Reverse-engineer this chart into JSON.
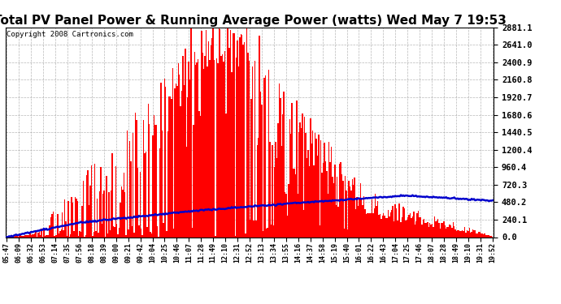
{
  "title": "Total PV Panel Power & Running Average Power (watts) Wed May 7 19:53",
  "copyright": "Copyright 2008 Cartronics.com",
  "ymax": 2881.1,
  "ymin": 0.0,
  "ytick_labels": [
    "0.0",
    "240.1",
    "480.2",
    "720.3",
    "960.4",
    "1200.4",
    "1440.5",
    "1680.6",
    "1920.7",
    "2160.8",
    "2400.9",
    "2641.0",
    "2881.1"
  ],
  "background_color": "#ffffff",
  "bar_color": "#ff0000",
  "avg_line_color": "#0000cc",
  "grid_color": "#999999",
  "title_fontsize": 11,
  "copyright_fontsize": 6.5,
  "tick_label_fontsize": 7.5,
  "x_tick_fontsize": 6,
  "x_labels": [
    "05:47",
    "06:09",
    "06:32",
    "06:53",
    "07:14",
    "07:35",
    "07:56",
    "08:18",
    "08:39",
    "09:00",
    "09:21",
    "09:42",
    "10:04",
    "10:25",
    "10:46",
    "11:07",
    "11:28",
    "11:49",
    "12:10",
    "12:31",
    "12:52",
    "13:13",
    "13:34",
    "13:55",
    "14:16",
    "14:37",
    "14:58",
    "15:19",
    "15:40",
    "16:01",
    "16:22",
    "16:43",
    "17:04",
    "17:25",
    "17:46",
    "18:07",
    "18:28",
    "18:49",
    "19:10",
    "19:31",
    "19:52"
  ]
}
